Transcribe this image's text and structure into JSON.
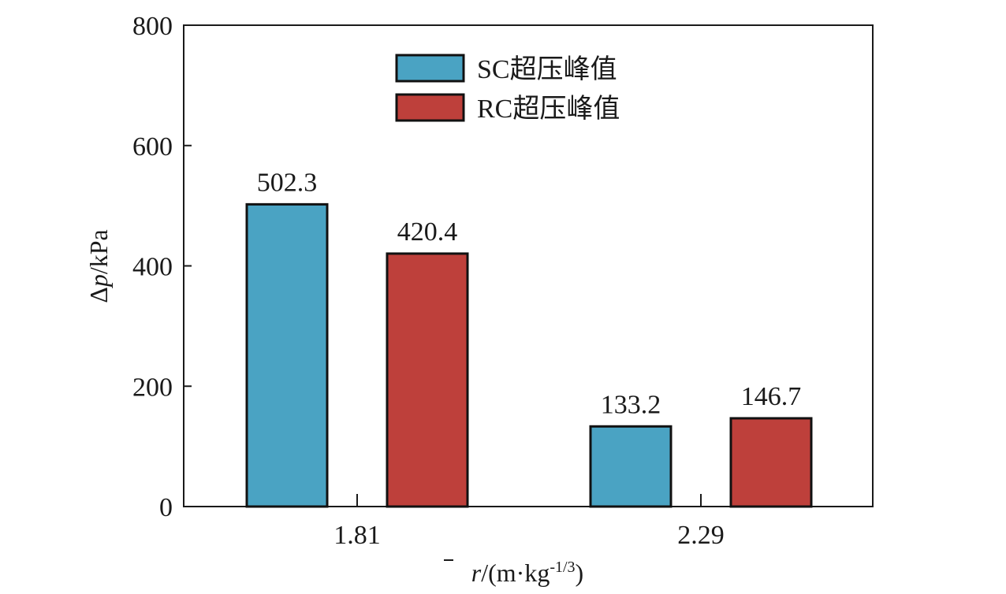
{
  "chart_data": {
    "type": "bar",
    "categories": [
      "1.81",
      "2.29"
    ],
    "series": [
      {
        "name": "SC超压峰值",
        "values": [
          502.3,
          133.2
        ],
        "color": "#4aa3c3"
      },
      {
        "name": "RC超压峰值",
        "values": [
          420.4,
          146.7
        ],
        "color": "#be403b"
      }
    ],
    "data_labels": [
      [
        "502.3",
        "133.2"
      ],
      [
        "420.4",
        "146.7"
      ]
    ],
    "ylim": [
      0,
      800
    ],
    "yticks": [
      "0",
      "200",
      "400",
      "600",
      "800"
    ],
    "ylabel": {
      "prefix": "Δ",
      "var": "p",
      "suffix": "/kPa"
    },
    "xlabel": {
      "var": "r",
      "mid": "/(m·kg",
      "sup": "-1/3",
      "close": ")"
    },
    "grid": false,
    "legend_position": "top-center"
  }
}
